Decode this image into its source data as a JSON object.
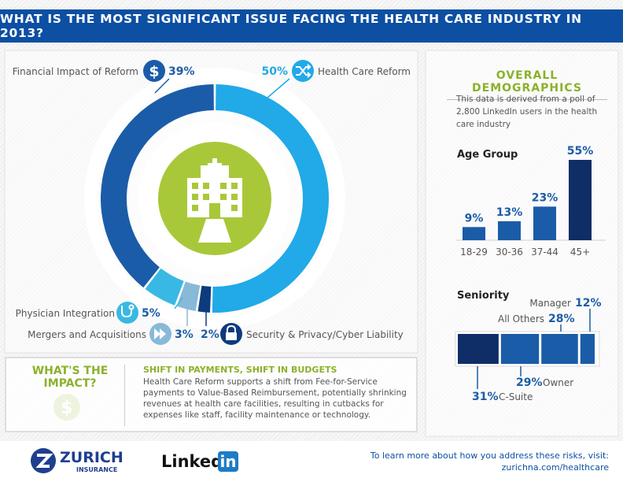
{
  "header": {
    "title": "WHAT IS THE MOST SIGNIFICANT ISSUE FACING THE HEALTH CARE INDUSTRY IN 2013?"
  },
  "chart_data": [
    {
      "type": "pie",
      "variant": "donut",
      "title": "WHAT IS THE MOST SIGNIFICANT ISSUE FACING THE HEALTH CARE INDUSTRY IN 2013?",
      "slices": [
        {
          "name": "Health Care Reform",
          "value": 50,
          "label": "50%",
          "color": "#21a9e8",
          "icon": "shuffle-icon"
        },
        {
          "name": "Security & Privacy/Cyber Liability",
          "value": 2,
          "label": "2%",
          "color": "#0e3b7e",
          "icon": "padlock-icon"
        },
        {
          "name": "Mergers and Acquisitions",
          "value": 3,
          "label": "3%",
          "color": "#88b9d8",
          "icon": "fast-forward-icon"
        },
        {
          "name": "Physician Integration",
          "value": 5,
          "label": "5%",
          "color": "#39b8e3",
          "icon": "stethoscope-icon"
        },
        {
          "name": "Financial Impact of Reform",
          "value": 39,
          "label": "39%",
          "color": "#1b5ca8",
          "icon": "dollar-icon"
        }
      ]
    },
    {
      "type": "bar",
      "title": "Age Group",
      "categories": [
        "18-29",
        "30-36",
        "37-44",
        "45+"
      ],
      "values": [
        9,
        13,
        23,
        55
      ],
      "labels": [
        "9%",
        "13%",
        "23%",
        "55%"
      ],
      "colors": [
        "#1b5ca8",
        "#1b5ca8",
        "#1b5ca8",
        "#0f2d66"
      ],
      "ylim": [
        0,
        55
      ]
    },
    {
      "type": "bar",
      "orientation": "stacked-horizontal",
      "title": "Seniority",
      "segments": [
        {
          "name": "C-Suite",
          "value": 31,
          "label": "31%",
          "color": "#0f2d66"
        },
        {
          "name": "Owner",
          "value": 29,
          "label": "29%",
          "color": "#1b5ca8"
        },
        {
          "name": "All Others",
          "value": 28,
          "label": "28%",
          "color": "#1b5ca8"
        },
        {
          "name": "Manager",
          "value": 12,
          "label": "12%",
          "color": "#1b5ca8"
        }
      ]
    }
  ],
  "demographics": {
    "title": "OVERALL DEMOGRAPHICS",
    "note": "This data is derived from a poll of 2,800 LinkedIn users in the health care industry"
  },
  "impact": {
    "heading": "WHAT'S THE IMPACT?",
    "subheading": "SHIFT IN PAYMENTS, SHIFT IN BUDGETS",
    "body": "Health Care Reform supports a shift from Fee-for-Service payments to Value-Based Reimbursement, potentially shrinking revenues at health care facilities, resulting in cutbacks for expenses like staff, facility maintenance or technology.",
    "icon": "dollar-icon"
  },
  "center_icon": "hospital-icon",
  "footer": {
    "zurich_name": "ZURICH",
    "zurich_sub": "INSURANCE",
    "linkedin_word": "Linked",
    "linkedin_box": "in",
    "cta_line1": "To learn more about how you address these risks, visit:",
    "cta_line2": "zurichna.com/healthcare"
  },
  "colors": {
    "brand_blue": "#0c4fa3",
    "accent_green": "#8bb12a",
    "light_blue": "#21a9e8",
    "dark_navy": "#0f2d66"
  }
}
